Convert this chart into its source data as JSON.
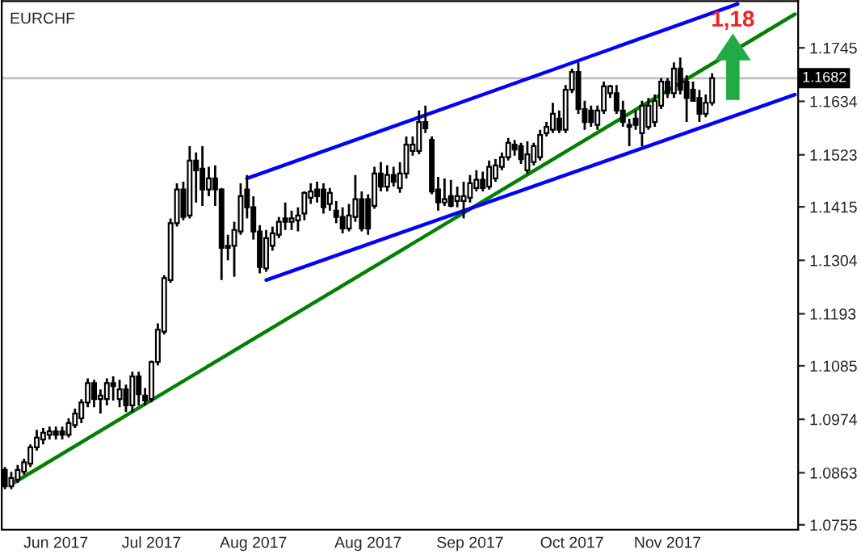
{
  "chart_data": {
    "type": "candlestick",
    "title": "EURCHF",
    "categories": [
      null,
      null,
      null,
      null,
      null,
      null,
      null,
      null,
      "Jun 2017",
      null,
      null,
      null,
      null,
      null,
      null,
      null,
      null,
      null,
      null,
      null,
      null,
      null,
      null,
      "Jul 2017",
      null,
      null,
      null,
      null,
      null,
      null,
      null,
      null,
      null,
      null,
      null,
      null,
      null,
      null,
      null,
      "Aug 2017",
      null,
      null,
      null,
      null,
      null,
      null,
      null,
      null,
      null,
      null,
      null,
      null,
      null,
      null,
      null,
      null,
      null,
      "Aug 2017",
      null,
      null,
      null,
      null,
      null,
      null,
      null,
      null,
      null,
      null,
      null,
      null,
      null,
      null,
      null,
      "Sep 2017",
      null,
      null,
      null,
      null,
      null,
      null,
      null,
      null,
      null,
      null,
      null,
      null,
      null,
      null,
      null,
      "Oct 2017",
      null,
      null,
      null,
      null,
      null,
      null,
      null,
      null,
      null,
      null,
      null,
      null,
      null,
      null,
      "Nov 2017",
      null,
      null,
      null,
      null,
      null,
      null,
      null,
      null,
      null,
      null,
      null,
      null,
      null,
      null,
      null,
      null,
      null,
      null,
      null,
      null
    ],
    "ohlc": [
      [
        1.0869,
        1.0875,
        1.0829,
        1.0835
      ],
      [
        1.0835,
        1.0865,
        1.0829,
        1.0852
      ],
      [
        1.0849,
        1.0879,
        1.0842,
        1.0869
      ],
      [
        1.0865,
        1.0892,
        1.0859,
        1.0885
      ],
      [
        1.0882,
        1.0922,
        1.0875,
        1.0916
      ],
      [
        1.0916,
        1.0952,
        1.0909,
        1.0936
      ],
      [
        1.0932,
        1.0956,
        1.0922,
        1.0946
      ],
      [
        1.0942,
        1.0959,
        1.0932,
        1.0949
      ],
      [
        1.0949,
        1.0959,
        1.0932,
        1.0942
      ],
      [
        1.0949,
        1.0959,
        1.0932,
        1.0942
      ],
      [
        1.0942,
        1.0976,
        1.0936,
        1.0966
      ],
      [
        1.0962,
        1.0996,
        1.0956,
        1.0986
      ],
      [
        1.0976,
        1.1016,
        1.0966,
        1.1009
      ],
      [
        1.1009,
        1.1059,
        1.0999,
        1.1049
      ],
      [
        1.1049,
        1.1056,
        1.0999,
        1.1016
      ],
      [
        1.1016,
        1.1036,
        1.0986,
        1.1023
      ],
      [
        1.1016,
        1.1059,
        1.1003,
        1.1049
      ],
      [
        1.1049,
        1.1063,
        1.1013,
        1.1043
      ],
      [
        1.1016,
        1.1056,
        1.0999,
        1.1036
      ],
      [
        1.1036,
        1.1046,
        1.0989,
        1.1003
      ],
      [
        1.1003,
        1.1073,
        1.0989,
        1.1063
      ],
      [
        1.1063,
        1.1073,
        1.1003,
        1.1026
      ],
      [
        1.1023,
        1.1039,
        1.1003,
        1.1013
      ],
      [
        1.1016,
        1.1096,
        1.1009,
        1.1093
      ],
      [
        1.1093,
        1.1173,
        1.1086,
        1.116
      ],
      [
        1.1156,
        1.1273,
        1.115,
        1.1267
      ],
      [
        1.1263,
        1.1391,
        1.1257,
        1.1381
      ],
      [
        1.1381,
        1.1464,
        1.1374,
        1.1451
      ],
      [
        1.1451,
        1.1467,
        1.1387,
        1.1394
      ],
      [
        1.1397,
        1.1541,
        1.1391,
        1.1511
      ],
      [
        1.1511,
        1.1528,
        1.1424,
        1.1491
      ],
      [
        1.1494,
        1.1541,
        1.1417,
        1.1451
      ],
      [
        1.1451,
        1.1498,
        1.1437,
        1.1474
      ],
      [
        1.1474,
        1.1501,
        1.1417,
        1.1451
      ],
      [
        1.1451,
        1.1454,
        1.1263,
        1.133
      ],
      [
        1.1334,
        1.1357,
        1.1304,
        1.133
      ],
      [
        1.1334,
        1.1384,
        1.127,
        1.1367
      ],
      [
        1.1364,
        1.1464,
        1.1357,
        1.1437
      ],
      [
        1.1451,
        1.1481,
        1.1391,
        1.1414
      ],
      [
        1.1414,
        1.1437,
        1.1347,
        1.1364
      ],
      [
        1.1364,
        1.1377,
        1.1277,
        1.129
      ],
      [
        1.1287,
        1.1367,
        1.128,
        1.135
      ],
      [
        1.1334,
        1.1374,
        1.1324,
        1.136
      ],
      [
        1.1357,
        1.1394,
        1.135,
        1.1384
      ],
      [
        1.1391,
        1.1424,
        1.1367,
        1.1384
      ],
      [
        1.1384,
        1.1407,
        1.1367,
        1.1391
      ],
      [
        1.1387,
        1.1414,
        1.1364,
        1.1397
      ],
      [
        1.1401,
        1.1447,
        1.1387,
        1.1444
      ],
      [
        1.1434,
        1.1464,
        1.1421,
        1.1447
      ],
      [
        1.1451,
        1.1467,
        1.1424,
        1.1437
      ],
      [
        1.1451,
        1.1464,
        1.1401,
        1.1414
      ],
      [
        1.1421,
        1.1454,
        1.1407,
        1.1444
      ],
      [
        1.1407,
        1.1427,
        1.1381,
        1.1394
      ],
      [
        1.1394,
        1.1414,
        1.136,
        1.137
      ],
      [
        1.137,
        1.1421,
        1.1364,
        1.1397
      ],
      [
        1.1394,
        1.1481,
        1.1384,
        1.1431
      ],
      [
        1.1431,
        1.1447,
        1.1364,
        1.137
      ],
      [
        1.1431,
        1.1441,
        1.1357,
        1.137
      ],
      [
        1.1417,
        1.1498,
        1.1411,
        1.1484
      ],
      [
        1.1484,
        1.1508,
        1.1447,
        1.1457
      ],
      [
        1.1457,
        1.1501,
        1.1447,
        1.1481
      ],
      [
        1.1481,
        1.1498,
        1.1457,
        1.1467
      ],
      [
        1.1454,
        1.1508,
        1.1444,
        1.1484
      ],
      [
        1.1484,
        1.1561,
        1.1474,
        1.1544
      ],
      [
        1.1531,
        1.1561,
        1.1521,
        1.1544
      ],
      [
        1.1531,
        1.1615,
        1.1524,
        1.1591
      ],
      [
        1.1591,
        1.1625,
        1.1568,
        1.1578
      ],
      [
        1.1554,
        1.1561,
        1.1441,
        1.1447
      ],
      [
        1.1451,
        1.1477,
        1.1407,
        1.1424
      ],
      [
        1.1424,
        1.1474,
        1.1417,
        1.1431
      ],
      [
        1.1437,
        1.1471,
        1.1414,
        1.1417
      ],
      [
        1.1427,
        1.1457,
        1.1414,
        1.1437
      ],
      [
        1.1427,
        1.1467,
        1.1391,
        1.1437
      ],
      [
        1.1434,
        1.1481,
        1.1424,
        1.1464
      ],
      [
        1.1454,
        1.1491,
        1.1447,
        1.1471
      ],
      [
        1.1471,
        1.1488,
        1.1447,
        1.1454
      ],
      [
        1.1457,
        1.1511,
        1.1451,
        1.1498
      ],
      [
        1.1474,
        1.1514,
        1.1467,
        1.1501
      ],
      [
        1.1498,
        1.1528,
        1.1491,
        1.1518
      ],
      [
        1.1518,
        1.1558,
        1.1511,
        1.1548
      ],
      [
        1.1544,
        1.1554,
        1.1521,
        1.1534
      ],
      [
        1.1541,
        1.1548,
        1.1504,
        1.1514
      ],
      [
        1.1491,
        1.1551,
        1.1484,
        1.1524
      ],
      [
        1.1508,
        1.1548,
        1.1501,
        1.1541
      ],
      [
        1.1518,
        1.1575,
        1.1511,
        1.1564
      ],
      [
        1.1568,
        1.1591,
        1.1561,
        1.1581
      ],
      [
        1.1575,
        1.1631,
        1.1568,
        1.1608
      ],
      [
        1.1598,
        1.1615,
        1.1568,
        1.1575
      ],
      [
        1.1575,
        1.1668,
        1.1568,
        1.1658
      ],
      [
        1.1658,
        1.1702,
        1.1651,
        1.1695
      ],
      [
        1.1695,
        1.1715,
        1.1608,
        1.1618
      ],
      [
        1.1618,
        1.1635,
        1.1575,
        1.1591
      ],
      [
        1.1615,
        1.1625,
        1.1581,
        1.1591
      ],
      [
        1.1585,
        1.1625,
        1.1575,
        1.1615
      ],
      [
        1.1615,
        1.1675,
        1.1608,
        1.1665
      ],
      [
        1.1651,
        1.1668,
        1.1641,
        1.1665
      ],
      [
        1.1651,
        1.1668,
        1.1608,
        1.1615
      ],
      [
        1.1615,
        1.1635,
        1.1581,
        1.1591
      ],
      [
        1.1585,
        1.1598,
        1.1541,
        1.1581
      ],
      [
        1.1598,
        1.1615,
        1.1575,
        1.1585
      ],
      [
        1.1568,
        1.1635,
        1.1541,
        1.1625
      ],
      [
        1.1581,
        1.1641,
        1.1575,
        1.1625
      ],
      [
        1.1591,
        1.1648,
        1.1581,
        1.1635
      ],
      [
        1.1625,
        1.1682,
        1.1618,
        1.1675
      ],
      [
        1.1675,
        1.1682,
        1.1641,
        1.1651
      ],
      [
        1.1651,
        1.1715,
        1.1641,
        1.1702
      ],
      [
        1.1702,
        1.1725,
        1.1648,
        1.1658
      ],
      [
        1.1675,
        1.1688,
        1.1591,
        1.1641
      ],
      [
        1.1658,
        1.1675,
        1.1635,
        1.1635
      ],
      [
        1.1641,
        1.1658,
        1.1591,
        1.1608
      ],
      [
        1.1608,
        1.1648,
        1.1601,
        1.1631
      ],
      [
        1.1631,
        1.1692,
        1.1625,
        1.1682
      ],
      null,
      null,
      null,
      null,
      null,
      null,
      null,
      null,
      null,
      null,
      null,
      null,
      null
    ],
    "series": [
      {
        "type": "line",
        "color": "#008000",
        "values": [
          null,
          1.0839,
          null,
          null,
          null,
          null,
          null,
          null,
          null,
          null,
          null,
          null,
          null,
          null,
          null,
          null,
          null,
          null,
          null,
          null,
          null,
          null,
          null,
          null,
          null,
          null,
          null,
          null,
          null,
          null,
          null,
          null,
          null,
          null,
          null,
          null,
          null,
          null,
          null,
          null,
          null,
          null,
          null,
          null,
          null,
          null,
          null,
          null,
          null,
          null,
          null,
          null,
          null,
          null,
          null,
          null,
          null,
          null,
          null,
          null,
          null,
          null,
          null,
          null,
          null,
          null,
          null,
          null,
          null,
          null,
          null,
          null,
          null,
          null,
          null,
          null,
          null,
          null,
          null,
          null,
          null,
          null,
          null,
          null,
          null,
          null,
          null,
          null,
          null,
          null,
          null,
          null,
          null,
          null,
          null,
          null,
          null,
          null,
          null,
          null,
          null,
          null,
          null,
          null,
          null,
          null,
          null,
          null,
          null,
          null,
          null,
          null,
          null,
          null,
          null,
          null,
          null,
          null,
          null,
          null,
          null,
          null,
          null,
          null,
          1.1815
        ]
      },
      {
        "type": "line",
        "color": "#0000ff",
        "values": [
          null,
          null,
          null,
          null,
          null,
          null,
          null,
          null,
          null,
          null,
          null,
          null,
          null,
          null,
          null,
          null,
          null,
          null,
          null,
          null,
          null,
          null,
          null,
          null,
          null,
          null,
          null,
          null,
          null,
          null,
          null,
          null,
          null,
          null,
          null,
          null,
          null,
          null,
          1.1474,
          null,
          null,
          null,
          null,
          null,
          null,
          null,
          null,
          null,
          null,
          null,
          null,
          null,
          null,
          null,
          null,
          null,
          null,
          null,
          null,
          null,
          null,
          null,
          null,
          null,
          null,
          null,
          null,
          null,
          null,
          null,
          null,
          null,
          null,
          null,
          null,
          null,
          null,
          null,
          null,
          null,
          null,
          null,
          null,
          null,
          null,
          null,
          null,
          null,
          null,
          null,
          null,
          null,
          null,
          null,
          null,
          null,
          null,
          null,
          null,
          null,
          null,
          null,
          null,
          null,
          null,
          null,
          null,
          null,
          null,
          null,
          null,
          null,
          null,
          null,
          null,
          1.1836,
          null,
          null,
          null,
          null,
          null,
          null,
          null,
          null,
          null
        ]
      },
      {
        "type": "line",
        "color": "#0000ff",
        "values": [
          null,
          null,
          null,
          null,
          null,
          null,
          null,
          null,
          null,
          null,
          null,
          null,
          null,
          null,
          null,
          null,
          null,
          null,
          null,
          null,
          null,
          null,
          null,
          null,
          null,
          null,
          null,
          null,
          null,
          null,
          null,
          null,
          null,
          null,
          null,
          null,
          null,
          null,
          null,
          null,
          null,
          1.1263,
          null,
          null,
          null,
          null,
          null,
          null,
          null,
          null,
          null,
          null,
          null,
          null,
          null,
          null,
          null,
          null,
          null,
          null,
          null,
          null,
          null,
          null,
          null,
          null,
          null,
          null,
          null,
          null,
          null,
          null,
          null,
          null,
          null,
          null,
          null,
          null,
          null,
          null,
          null,
          null,
          null,
          null,
          null,
          null,
          null,
          null,
          null,
          null,
          null,
          null,
          null,
          null,
          null,
          null,
          null,
          null,
          null,
          null,
          null,
          null,
          null,
          null,
          null,
          null,
          null,
          null,
          null,
          null,
          null,
          null,
          null,
          null,
          null,
          null,
          null,
          null,
          null,
          null,
          null,
          null,
          null,
          null,
          1.1648
        ]
      }
    ],
    "ylim": [
      1.0745,
      1.1842
    ],
    "yticks": [
      1.0755,
      1.0863,
      1.0974,
      1.1085,
      1.1193,
      1.1304,
      1.1415,
      1.1523,
      1.1634,
      1.1745
    ],
    "ref_lines": [
      {
        "axis": "y",
        "value": 1.1682,
        "label": "1.1682",
        "color": "#c0c0c0"
      }
    ],
    "annotations": [
      "1,18"
    ],
    "grid": false,
    "legend": false
  }
}
